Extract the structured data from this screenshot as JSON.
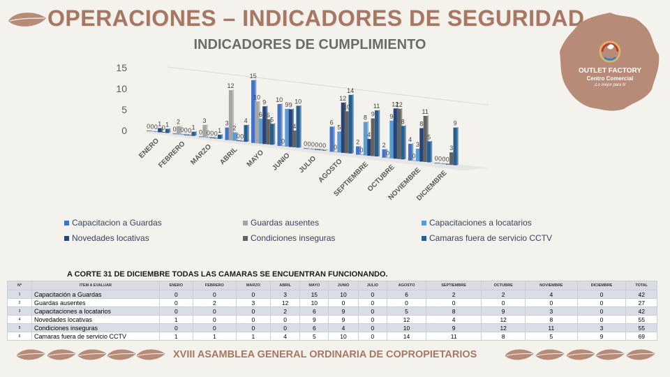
{
  "header": {
    "title": "OPERACIONES – INDICADORES DE SEGURIDAD",
    "subtitle": "INDICADORES DE CUMPLIMIENTO"
  },
  "logo": {
    "name": "OUTLET FACTORY",
    "tagline": "Centro Comercial",
    "slogan": "¡Lo mejor para ti!"
  },
  "colors": {
    "brand": "#a67864",
    "leaf": "#b88a78",
    "s1": "#4472c4",
    "s2": "#a5a5a5",
    "s3": "#5b9bd5",
    "s4": "#264478",
    "s5": "#636363",
    "s6": "#255e91"
  },
  "chart_data": {
    "type": "bar",
    "title": "INDICADORES DE CUMPLIMIENTO",
    "ylim": [
      0,
      15
    ],
    "yticks": [
      0,
      5,
      10,
      15
    ],
    "categories": [
      "ENERO",
      "FEBRERO",
      "MARZO",
      "ABRIL",
      "MAYO",
      "JUNIO",
      "JULIO",
      "AGOSTO",
      "SEPTIEMBRE",
      "OCTUBRE",
      "NOVIEMBRE",
      "DICIEMBRE"
    ],
    "series": [
      {
        "name": "Capacitacion a Guardas",
        "values": [
          0,
          0,
          0,
          3,
          15,
          10,
          0,
          6,
          2,
          2,
          4,
          0
        ]
      },
      {
        "name": "Guardas ausentes",
        "values": [
          0,
          2,
          3,
          12,
          10,
          0,
          0,
          0,
          0,
          0,
          0,
          0
        ]
      },
      {
        "name": "Capacitaciones a locatarios",
        "values": [
          0,
          0,
          0,
          2,
          6,
          9,
          0,
          5,
          8,
          9,
          3,
          0
        ]
      },
      {
        "name": "Novedades locativas",
        "values": [
          1,
          0,
          0,
          0,
          9,
          9,
          0,
          12,
          4,
          12,
          8,
          0
        ]
      },
      {
        "name": "Condiciones inseguras",
        "values": [
          0,
          0,
          0,
          0,
          6,
          4,
          0,
          10,
          9,
          12,
          11,
          3
        ]
      },
      {
        "name": "Camaras fuera de servicio CCTV",
        "values": [
          1,
          1,
          1,
          4,
          5,
          10,
          0,
          14,
          11,
          8,
          5,
          9
        ]
      }
    ],
    "legend_position": "bottom",
    "grid": false
  },
  "note": "A CORTE 31 DE DICIEMBRE TODAS LAS CAMARAS SE ENCUENTRAN FUNCIONANDO.",
  "table": {
    "headers": [
      "Nº",
      "ITEM A EVALUAR",
      "ENERO",
      "FEBRERO",
      "MARZO",
      "ABRIL",
      "MAYO",
      "JUNIO",
      "JULIO",
      "AGOSTO",
      "SEPTIEMBRE",
      "OCTUBRE",
      "NOVIEMBRE",
      "DICIEMBRE",
      "TOTAL"
    ],
    "rows": [
      {
        "no": "1",
        "item": "Capacitación a Guardas",
        "values": [
          "0",
          "0",
          "0",
          "3",
          "15",
          "10",
          "0",
          "6",
          "2",
          "2",
          "4",
          "0"
        ],
        "total": "42"
      },
      {
        "no": "2",
        "item": "Guardas ausentes",
        "values": [
          "0",
          "2",
          "3",
          "12",
          "10",
          "0",
          "0",
          "0",
          "0",
          "0",
          "0",
          "0"
        ],
        "total": "27"
      },
      {
        "no": "3",
        "item": "Capacitaciones a locatarios",
        "values": [
          "0",
          "0",
          "0",
          "2",
          "6",
          "9",
          "0",
          "5",
          "8",
          "9",
          "3",
          "0"
        ],
        "total": "42"
      },
      {
        "no": "4",
        "item": "Novedades locativas",
        "values": [
          "1",
          "0",
          "0",
          "0",
          "9",
          "9",
          "0",
          "12",
          "4",
          "12",
          "8",
          "0"
        ],
        "total": "55"
      },
      {
        "no": "5",
        "item": "Condiciones inseguras",
        "values": [
          "0",
          "0",
          "0",
          "0",
          "6",
          "4",
          "0",
          "10",
          "9",
          "12",
          "11",
          "3"
        ],
        "total": "55"
      },
      {
        "no": "6",
        "item": "Camaras fuera de servicio CCTV",
        "values": [
          "1",
          "1",
          "1",
          "4",
          "5",
          "10",
          "0",
          "14",
          "11",
          "8",
          "5",
          "9"
        ],
        "total": "69"
      }
    ]
  },
  "footer": "XVIII ASAMBLEA GENERAL ORDINARIA DE COPROPIETARIOS"
}
